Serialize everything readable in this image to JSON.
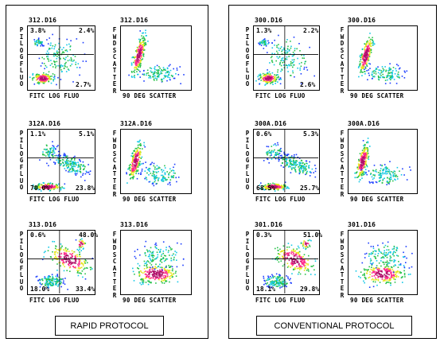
{
  "panels": [
    {
      "protocol": "RAPID PROTOCOL",
      "rows": [
        {
          "left": {
            "title": "312.D16",
            "q": [
              "3.8%",
              "2.4%",
              "",
              "2.7%"
            ],
            "ylabel": "PI LOG FLUO",
            "xlabel": "FITC LOG FLUO"
          },
          "right": {
            "title": "312.D16",
            "ylabel": "FWD SCATTER",
            "xlabel": "90 DEG SCATTER"
          }
        },
        {
          "left": {
            "title": "312A.D16",
            "q": [
              "1.1%",
              "5.1%",
              "70.0%",
              "23.8%"
            ],
            "ylabel": "PI LOG FLUO",
            "xlabel": "FITC LOG FLUO"
          },
          "right": {
            "title": "312A.D16",
            "ylabel": "FWD SCATTER",
            "xlabel": "90 DEG SCATTER"
          }
        },
        {
          "left": {
            "title": "313.D16",
            "q": [
              "0.6%",
              "48.0%",
              "18.0%",
              "33.4%"
            ],
            "ylabel": "PI LOG FLUO",
            "xlabel": "FITC LOG FLUO"
          },
          "right": {
            "title": "313.D16",
            "ylabel": "FWD SCATTER",
            "xlabel": "90 DEG SCATTER"
          }
        }
      ]
    },
    {
      "protocol": "CONVENTIONAL PROTOCOL",
      "rows": [
        {
          "left": {
            "title": "300.D16",
            "q": [
              "1.3%",
              "2.2%",
              "",
              "2.6%"
            ],
            "ylabel": "PI LOG FLUO",
            "xlabel": "FITC LOG FLUO"
          },
          "right": {
            "title": "300.D16",
            "ylabel": "FWD SCATTER",
            "xlabel": "90 DEG SCATTER"
          }
        },
        {
          "left": {
            "title": "300A.D16",
            "q": [
              "0.6%",
              "5.3%",
              "68.5%",
              "25.7%"
            ],
            "ylabel": "PI LOG FLUO",
            "xlabel": "FITC LOG FLUO"
          },
          "right": {
            "title": "300A.D16",
            "ylabel": "FWD SCATTER",
            "xlabel": "90 DEG SCATTER"
          }
        },
        {
          "left": {
            "title": "301.D16",
            "q": [
              "0.3%",
              "51.0%",
              "18.1%",
              "29.8%"
            ],
            "ylabel": "PI LOG FLUO",
            "xlabel": "FITC LOG FLUO"
          },
          "right": {
            "title": "301.D16",
            "ylabel": "FWD SCATTER",
            "xlabel": "90 DEG SCATTER"
          }
        }
      ]
    }
  ],
  "colors": {
    "density": [
      "#1a3cff",
      "#12c8e6",
      "#27c24a",
      "#e6e61a",
      "#ff2a8a",
      "#b0106a"
    ],
    "frame": "#000000"
  }
}
